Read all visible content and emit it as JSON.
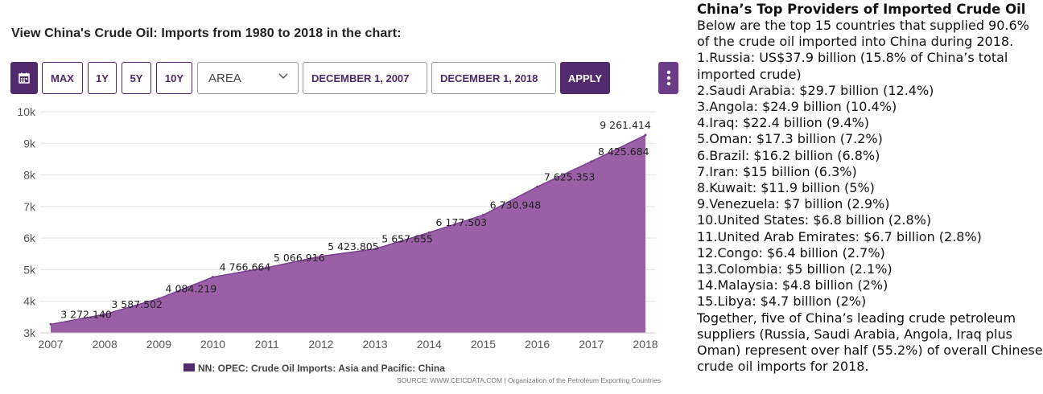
{
  "heading": "View China's Crude Oil: Imports from 1980 to 2018 in the chart:",
  "toolbar": {
    "calendar_icon": "calendar-icon",
    "max_label": "MAX",
    "y1_label": "1Y",
    "y5_label": "5Y",
    "y10_label": "10Y",
    "chart_type": "AREA",
    "start_date": "DECEMBER 1, 2007",
    "end_date": "DECEMBER 1, 2018",
    "apply_label": "APPLY",
    "more_icon": "kebab-menu-icon"
  },
  "colors": {
    "accent": "#522b6e",
    "area_fill": "#9b5fa8",
    "area_line": "#7a3d8f",
    "grid": "#e3e3e3"
  },
  "chart_data": {
    "type": "area",
    "title": "",
    "xlabel": "",
    "ylabel": "",
    "x": [
      "2007",
      "2008",
      "2009",
      "2010",
      "2011",
      "2012",
      "2013",
      "2014",
      "2015",
      "2016",
      "2017",
      "2018"
    ],
    "values": [
      3272.14,
      3587.502,
      4084.219,
      4766.664,
      5066.916,
      5423.805,
      5657.655,
      6177.503,
      6730.948,
      7625.353,
      8425.684,
      9261.414
    ],
    "data_labels": [
      "3 272.140",
      "3 587.502",
      "4 084.219",
      "4 766.664",
      "5 066.916",
      "5 423.805",
      "5 657.655",
      "6 177.503",
      "6 730.948",
      "7 625.353",
      "8 425.684",
      "9 261.414"
    ],
    "ylim": [
      3000,
      10000
    ],
    "yticks": [
      3000,
      4000,
      5000,
      6000,
      7000,
      8000,
      9000,
      10000
    ],
    "ytick_labels": [
      "3k",
      "4k",
      "5k",
      "6k",
      "7k",
      "8k",
      "9k",
      "10k"
    ],
    "grid": true,
    "legend": "NN: OPEC: Crude Oil Imports: Asia and Pacific: China",
    "legend_position": "bottom-center",
    "source": "SOURCE: WWW.CEICDATA.COM | Organization of the Petroleum Exporting Countries"
  },
  "article": {
    "title": "China’s Top Providers of Imported Crude Oil",
    "intro": "Below are the top 15 countries that supplied 90.6% of the crude oil imported into China during 2018.",
    "items": [
      "1.Russia: US$37.9 billion (15.8% of China’s total imported crude)",
      "2.Saudi Arabia: $29.7 billion (12.4%)",
      "3.Angola: $24.9 billion (10.4%)",
      "4.Iraq: $22.4 billion (9.4%)",
      "5.Oman: $17.3 billion (7.2%)",
      "6.Brazil: $16.2 billion (6.8%)",
      "7.Iran: $15 billion (6.3%)",
      "8.Kuwait: $11.9 billion (5%)",
      "9.Venezuela: $7 billion (2.9%)",
      "10.United States: $6.8 billion (2.8%)",
      "11.United Arab Emirates: $6.7 billion (2.8%)",
      "12.Congo: $6.4 billion (2.7%)",
      "13.Colombia: $5 billion (2.1%)",
      "14.Malaysia: $4.8 billion (2%)",
      "15.Libya: $4.7 billion (2%)"
    ],
    "outro": "Together, five of China’s leading crude petroleum suppliers (Russia, Saudi Arabia, Angola, Iraq plus Oman) represent over half (55.2%) of overall Chinese crude oil imports for 2018."
  }
}
